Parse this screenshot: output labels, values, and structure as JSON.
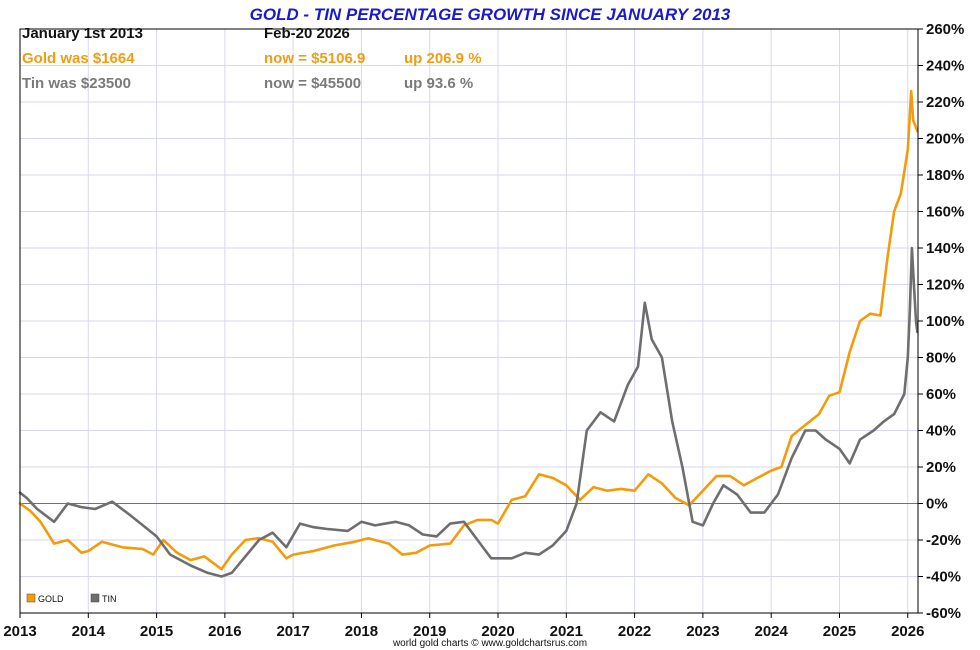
{
  "colors": {
    "gold": "#f59b0b",
    "tin": "#6e6e6e",
    "zero_line": "#cc33cc",
    "grid": "#d7d7ee",
    "title": "#1a1acc",
    "axis": "#000000"
  },
  "header": {
    "start_label": "January 1st 2013",
    "end_label": "Feb-20  2026",
    "gold_was": "Gold was $1664",
    "gold_now": "now = $5106.9",
    "gold_up": "up 206.9 %",
    "tin_was": "Tin was $23500",
    "tin_now": "now = $45500",
    "tin_up": "up 93.6 %"
  },
  "footer": {
    "credit": "world gold charts © www.goldchartsrus.com"
  },
  "chart_data": {
    "type": "line",
    "title": "GOLD - TIN PERCENTAGE GROWTH SINCE JANUARY 2013",
    "xlabel": "",
    "ylabel": "",
    "xlim": [
      2013.0,
      2026.15
    ],
    "ylim": [
      -60,
      260
    ],
    "x_ticks": [
      2013,
      2014,
      2015,
      2016,
      2017,
      2018,
      2019,
      2020,
      2021,
      2022,
      2023,
      2024,
      2025,
      2026
    ],
    "x_tick_labels": [
      "2013",
      "2014",
      "2015",
      "2016",
      "2017",
      "2018",
      "2019",
      "2020",
      "2021",
      "2022",
      "2023",
      "2024",
      "2025",
      "2026"
    ],
    "y_ticks": [
      -60,
      -40,
      -20,
      0,
      20,
      40,
      60,
      80,
      100,
      120,
      140,
      160,
      180,
      200,
      220,
      240,
      260
    ],
    "y_tick_labels": [
      "-60%",
      "-40%",
      "-20%",
      "0%",
      "20%",
      "40%",
      "60%",
      "80%",
      "100%",
      "120%",
      "140%",
      "160%",
      "180%",
      "200%",
      "220%",
      "240%",
      "260%"
    ],
    "grid": true,
    "zero_line": 0,
    "legend": {
      "placement": "bottom-left",
      "entries": [
        "GOLD",
        "TIN"
      ]
    },
    "series": [
      {
        "name": "GOLD",
        "x": [
          2013.0,
          2013.15,
          2013.3,
          2013.5,
          2013.7,
          2013.9,
          2014.0,
          2014.2,
          2014.5,
          2014.8,
          2014.95,
          2015.1,
          2015.3,
          2015.5,
          2015.7,
          2015.95,
          2016.1,
          2016.3,
          2016.5,
          2016.7,
          2016.9,
          2017.0,
          2017.3,
          2017.6,
          2017.9,
          2018.1,
          2018.4,
          2018.6,
          2018.8,
          2019.0,
          2019.3,
          2019.5,
          2019.7,
          2019.9,
          2020.0,
          2020.2,
          2020.4,
          2020.6,
          2020.8,
          2021.0,
          2021.2,
          2021.4,
          2021.6,
          2021.8,
          2022.0,
          2022.2,
          2022.4,
          2022.6,
          2022.8,
          2023.0,
          2023.2,
          2023.4,
          2023.6,
          2023.8,
          2024.0,
          2024.15,
          2024.3,
          2024.5,
          2024.7,
          2024.85,
          2025.0,
          2025.15,
          2025.3,
          2025.45,
          2025.6,
          2025.7,
          2025.8,
          2025.9,
          2026.0,
          2026.05,
          2026.08,
          2026.11,
          2026.14
        ],
        "values": [
          0,
          -4,
          -10,
          -22,
          -20,
          -27,
          -26,
          -21,
          -24,
          -25,
          -28,
          -20,
          -27,
          -31,
          -29,
          -36,
          -28,
          -20,
          -19,
          -21,
          -30,
          -28,
          -26,
          -23,
          -21,
          -19,
          -22,
          -28,
          -27,
          -23,
          -22,
          -12,
          -9,
          -9,
          -11,
          2,
          4,
          16,
          14,
          10,
          2,
          9,
          7,
          8,
          7,
          16,
          11,
          3,
          -1,
          7,
          15,
          15,
          10,
          14,
          18,
          20,
          37,
          43,
          49,
          59,
          61,
          83,
          100,
          104,
          103,
          134,
          160,
          170,
          194,
          226,
          210,
          207,
          204
        ]
      },
      {
        "name": "TIN",
        "x": [
          2013.0,
          2013.1,
          2013.25,
          2013.5,
          2013.7,
          2013.9,
          2014.1,
          2014.35,
          2014.6,
          2014.8,
          2015.0,
          2015.2,
          2015.5,
          2015.75,
          2015.95,
          2016.1,
          2016.3,
          2016.5,
          2016.7,
          2016.9,
          2017.1,
          2017.3,
          2017.5,
          2017.8,
          2018.0,
          2018.2,
          2018.5,
          2018.7,
          2018.9,
          2019.1,
          2019.3,
          2019.5,
          2019.7,
          2019.9,
          2020.1,
          2020.2,
          2020.4,
          2020.6,
          2020.8,
          2021.0,
          2021.15,
          2021.3,
          2021.5,
          2021.7,
          2021.9,
          2022.05,
          2022.15,
          2022.25,
          2022.4,
          2022.55,
          2022.7,
          2022.85,
          2023.0,
          2023.15,
          2023.3,
          2023.5,
          2023.7,
          2023.9,
          2024.1,
          2024.3,
          2024.5,
          2024.65,
          2024.8,
          2025.0,
          2025.15,
          2025.3,
          2025.5,
          2025.65,
          2025.8,
          2025.95,
          2026.0,
          2026.03,
          2026.06,
          2026.09,
          2026.12,
          2026.14
        ],
        "values": [
          6,
          3,
          -3,
          -10,
          0,
          -2,
          -3,
          1,
          -6,
          -12,
          -18,
          -28,
          -34,
          -38,
          -40,
          -38,
          -29,
          -20,
          -16,
          -24,
          -11,
          -13,
          -14,
          -15,
          -10,
          -12,
          -10,
          -12,
          -17,
          -18,
          -11,
          -10,
          -20,
          -30,
          -30,
          -30,
          -27,
          -28,
          -23,
          -15,
          0,
          40,
          50,
          45,
          65,
          75,
          110,
          90,
          80,
          45,
          20,
          -10,
          -12,
          0,
          10,
          5,
          -5,
          -5,
          5,
          25,
          40,
          40,
          35,
          30,
          22,
          35,
          40,
          45,
          49,
          60,
          80,
          105,
          140,
          120,
          100,
          94
        ]
      }
    ]
  }
}
